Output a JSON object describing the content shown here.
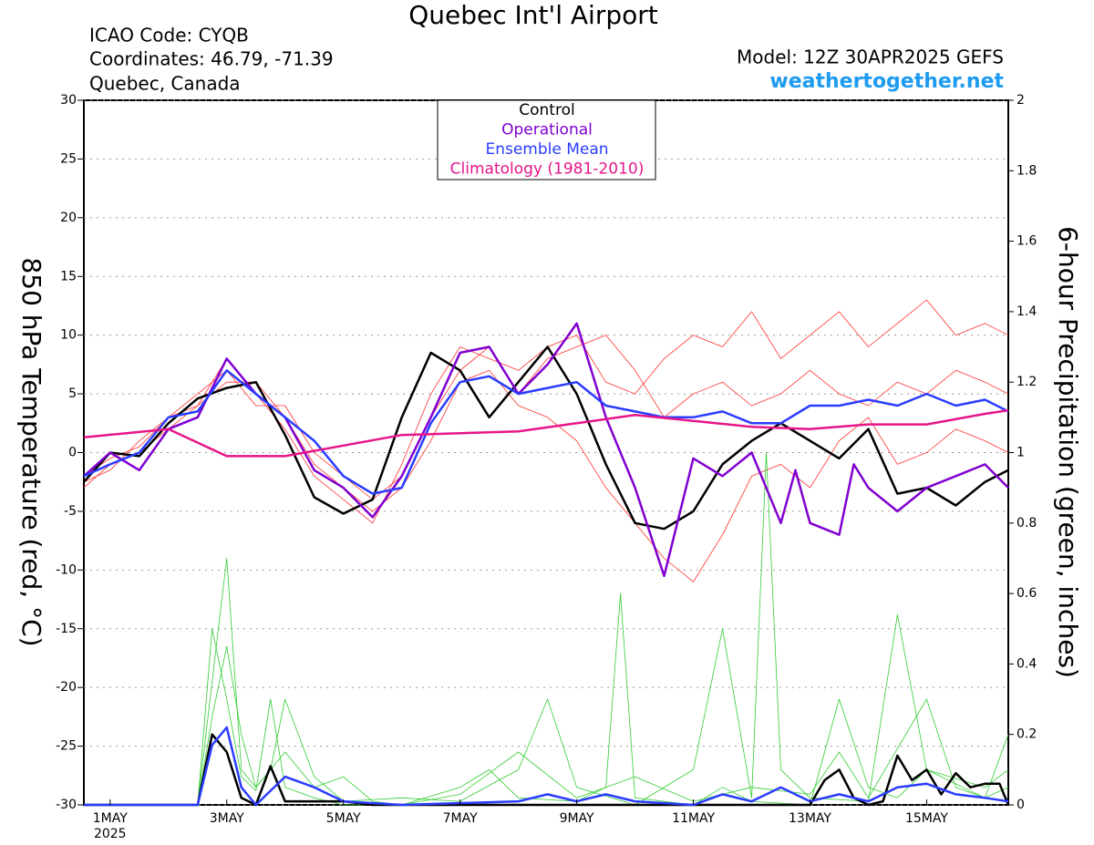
{
  "chart_data": {
    "type": "line",
    "title": "Quebec Int'l Airport",
    "info_left": [
      "ICAO Code: CYQB",
      "Coordinates: 46.79, -71.39",
      "Quebec, Canada"
    ],
    "model": "Model: 12Z 30APR2025 GEFS",
    "source": "weathertogether.net",
    "ylabel": "850 hPa Temperature (red, °C)",
    "y2label": "6-hour Precipitation (green, inches)",
    "xlim": [
      0.55,
      16.4
    ],
    "xticks": [
      {
        "value": 1,
        "label": "1MAY"
      },
      {
        "value": 3,
        "label": "3MAY"
      },
      {
        "value": 5,
        "label": "5MAY"
      },
      {
        "value": 7,
        "label": "7MAY"
      },
      {
        "value": 9,
        "label": "9MAY"
      },
      {
        "value": 11,
        "label": "11MAY"
      },
      {
        "value": 13,
        "label": "13MAY"
      },
      {
        "value": 15,
        "label": "15MAY"
      }
    ],
    "x_year": "2025",
    "ylim": [
      -30,
      30
    ],
    "yticks": [
      -30,
      -25,
      -20,
      -15,
      -10,
      -5,
      0,
      5,
      10,
      15,
      20,
      25,
      30
    ],
    "y2lim": [
      0,
      2
    ],
    "y2ticks": [
      0,
      0.2,
      0.4,
      0.6,
      0.8,
      1,
      1.2,
      1.4,
      1.6,
      1.8,
      2
    ],
    "grid": true,
    "series": [
      {
        "color": "#ff3030",
        "x": [
          0.55,
          1,
          1.5,
          2,
          2.5,
          3,
          3.5,
          4,
          4.5,
          5,
          5.5,
          6,
          6.5,
          7,
          7.5,
          8,
          8.5,
          9,
          9.5,
          10,
          10.5,
          11,
          11.5,
          12,
          12.5,
          13,
          13.5,
          14,
          14.5,
          15,
          15.5,
          16,
          16.4
        ],
        "values": [
          -2,
          -0.5,
          0.5,
          3,
          4,
          8,
          5,
          2,
          -2,
          -4,
          -6,
          -1,
          5,
          9,
          8,
          7,
          9,
          10,
          6,
          5,
          8,
          10,
          9,
          12,
          8,
          10,
          12,
          9,
          11,
          13,
          10,
          11,
          10
        ]
      },
      {
        "color": "#ff3030",
        "x": [
          0.55,
          1,
          1.5,
          2,
          2.5,
          3,
          3.5,
          4,
          4.5,
          5,
          5.5,
          6,
          6.5,
          7,
          7.5,
          8,
          8.5,
          9,
          9.5,
          10,
          10.5,
          11,
          11.5,
          12,
          12.5,
          13,
          13.5,
          14,
          14.5,
          15,
          15.5,
          16,
          16.4
        ],
        "values": [
          -3,
          -1,
          0,
          2,
          4,
          6,
          6,
          3,
          -1,
          -3,
          -5,
          -3,
          1,
          6,
          7,
          4,
          3,
          1,
          -3,
          -6,
          -9,
          -11,
          -7,
          -2,
          -1,
          -3,
          1,
          3,
          -1,
          0,
          2,
          1,
          0
        ]
      },
      {
        "color": "#ff3030",
        "x": [
          0.55,
          1,
          1.5,
          2,
          2.5,
          3,
          3.5,
          4,
          4.5,
          5,
          5.5,
          6,
          6.5,
          7,
          7.5,
          8,
          8.5,
          9,
          9.5,
          10,
          10.5,
          11,
          11.5,
          12,
          12.5,
          13,
          13.5,
          14,
          14.5,
          15,
          15.5,
          16,
          16.4
        ],
        "values": [
          -2.5,
          -1.5,
          1,
          3,
          5,
          7,
          4,
          4,
          0,
          -2,
          -4,
          -2,
          3,
          7,
          9,
          5,
          8,
          9,
          10,
          7,
          3,
          5,
          6,
          4,
          5,
          7,
          5,
          4,
          6,
          5,
          7,
          6,
          5
        ]
      },
      {
        "color": "#33cc33",
        "axis": "y2",
        "x": [
          0.55,
          2.5,
          2.75,
          3,
          3.25,
          3.5,
          3.75,
          4,
          4.5,
          5,
          6,
          7,
          7.5,
          8,
          9,
          9.5,
          9.75,
          10,
          11,
          11.5,
          12,
          13,
          13.5,
          14,
          14.5,
          15,
          16,
          16.4
        ],
        "values": [
          0,
          0,
          0.5,
          0.3,
          0.08,
          0.04,
          0.3,
          0.05,
          0.02,
          0,
          0,
          0.05,
          0.1,
          0.02,
          0.01,
          0.05,
          0.6,
          0.02,
          0,
          0.05,
          0.01,
          0,
          0.3,
          0.05,
          0.02,
          0.1,
          0.05,
          0.1
        ]
      },
      {
        "color": "#33cc33",
        "axis": "y2",
        "x": [
          0.55,
          2.5,
          2.75,
          3,
          3.25,
          3.5,
          3.75,
          4,
          4.5,
          5,
          6,
          7,
          8,
          8.5,
          9,
          10,
          11,
          11.5,
          12,
          12.25,
          12.5,
          13,
          14,
          14.5,
          15,
          16,
          16.4
        ],
        "values": [
          0,
          0,
          0.35,
          0.7,
          0.1,
          0.05,
          0.1,
          0.3,
          0.08,
          0.01,
          0.02,
          0.01,
          0.1,
          0.3,
          0.05,
          0,
          0.1,
          0.5,
          0.02,
          1,
          0.1,
          0.02,
          0.01,
          0.54,
          0.1,
          0.02,
          0.05
        ]
      },
      {
        "color": "#33cc33",
        "axis": "y2",
        "x": [
          0.55,
          2.5,
          2.75,
          3,
          3.25,
          3.5,
          4,
          4.5,
          5,
          5.5,
          6,
          7,
          8,
          9,
          10,
          11,
          12,
          13,
          13.5,
          14,
          15,
          15.5,
          16,
          16.4
        ],
        "values": [
          0,
          0,
          0.25,
          0.45,
          0.2,
          0.05,
          0.15,
          0.05,
          0.08,
          0.01,
          0,
          0.03,
          0.15,
          0.02,
          0.08,
          0.01,
          0.05,
          0.03,
          0.15,
          0.02,
          0.3,
          0.05,
          0.02,
          0.2
        ]
      },
      {
        "color": "#000000",
        "axis": "y2",
        "width": 2.5,
        "x": [
          0.55,
          2.5,
          2.75,
          3,
          3.25,
          3.5,
          3.75,
          4,
          5,
          5.5,
          13,
          13.25,
          13.5,
          13.75,
          14,
          14.25,
          14.5,
          14.75,
          15,
          15.25,
          15.5,
          15.75,
          16,
          16.25,
          16.4
        ],
        "values": [
          0,
          0,
          0.2,
          0.15,
          0.02,
          0,
          0.11,
          0.01,
          0.01,
          0,
          0,
          0.07,
          0.1,
          0.02,
          0,
          0.01,
          0.14,
          0.07,
          0.1,
          0.03,
          0.09,
          0.05,
          0.06,
          0.06,
          0
        ]
      },
      {
        "color": "#2a3cff",
        "axis": "y2",
        "width": 2.5,
        "x": [
          0.55,
          2.5,
          2.75,
          3,
          3.25,
          3.5,
          4,
          4.5,
          5,
          6,
          8,
          8.5,
          9,
          9.5,
          10,
          11,
          11.5,
          12,
          12.5,
          13,
          13.5,
          14,
          14.5,
          15,
          15.5,
          16,
          16.4
        ],
        "values": [
          0,
          0,
          0.17,
          0.22,
          0.05,
          0,
          0.08,
          0.05,
          0.01,
          0,
          0.01,
          0.03,
          0.01,
          0.03,
          0.01,
          0,
          0.03,
          0.01,
          0.05,
          0.01,
          0.03,
          0.01,
          0.05,
          0.06,
          0.03,
          0.02,
          0.01
        ]
      },
      {
        "name": "Control",
        "color": "#000000",
        "width": 2.5,
        "x": [
          0.55,
          1,
          1.5,
          2,
          2.5,
          3,
          3.5,
          4,
          4.5,
          5,
          5.5,
          6,
          6.5,
          7,
          7.5,
          8,
          8.5,
          9,
          9.5,
          10,
          10.5,
          11,
          11.5,
          12,
          12.5,
          13,
          13.5,
          14,
          14.5,
          15,
          15.5,
          16,
          16.4
        ],
        "values": [
          -2.5,
          0,
          -0.3,
          2.5,
          4.6,
          5.5,
          6,
          1.5,
          -3.8,
          -5.2,
          -4,
          3,
          8.5,
          7,
          3,
          6,
          9,
          5,
          -1,
          -6,
          -6.5,
          -5,
          -1,
          1,
          2.5,
          1,
          -0.5,
          2,
          -3.5,
          -3,
          -4.5,
          -2.5,
          -1.5
        ]
      },
      {
        "name": "Operational",
        "color": "#8000d0",
        "width": 2.5,
        "x": [
          0.55,
          1,
          1.5,
          2,
          2.5,
          3,
          3.5,
          4,
          4.5,
          5,
          5.5,
          6,
          6.5,
          7,
          7.5,
          8,
          8.5,
          9,
          9.5,
          10,
          10.5,
          11,
          11.5,
          12,
          12.5,
          12.75,
          13,
          13.5,
          13.75,
          14,
          14.5,
          15,
          15.5,
          16,
          16.4
        ],
        "values": [
          -2,
          0,
          -1.5,
          2,
          3,
          8,
          5,
          3,
          -1.5,
          -3,
          -5.5,
          -2,
          3,
          8.5,
          9,
          5,
          7.5,
          11,
          3,
          -3,
          -10.5,
          -0.5,
          -2,
          0,
          -6,
          -1.5,
          -6,
          -7,
          -1,
          -3,
          -5,
          -3,
          -2,
          -1,
          -3
        ]
      },
      {
        "name": "Ensemble Mean",
        "color": "#2a3cff",
        "width": 2.5,
        "x": [
          0.55,
          1,
          1.5,
          2,
          2.5,
          3,
          3.5,
          4,
          4.5,
          5,
          5.5,
          6,
          6.5,
          7,
          7.5,
          8,
          8.5,
          9,
          9.5,
          10,
          10.5,
          11,
          11.5,
          12,
          12.5,
          13,
          13.5,
          14,
          14.5,
          15,
          15.5,
          16,
          16.4
        ],
        "values": [
          -2,
          -1,
          0,
          3,
          3.5,
          7,
          5,
          3,
          1,
          -2,
          -3.5,
          -3,
          2.5,
          6,
          6.5,
          5,
          5.5,
          6,
          4,
          3.5,
          3,
          3,
          3.5,
          2.5,
          2.5,
          4,
          4,
          4.5,
          4,
          5,
          4,
          4.5,
          3.5
        ]
      },
      {
        "name": "Climatology (1981-2010)",
        "color": "#e6168a",
        "width": 2.5,
        "x": [
          0.55,
          2,
          3,
          4,
          6,
          8,
          9,
          10,
          12,
          13,
          14,
          15,
          16,
          16.4
        ],
        "values": [
          1.3,
          2,
          -0.3,
          -0.3,
          1.5,
          1.8,
          2.5,
          3.2,
          2.2,
          2,
          2.4,
          2.4,
          3.3,
          3.6
        ]
      }
    ]
  }
}
